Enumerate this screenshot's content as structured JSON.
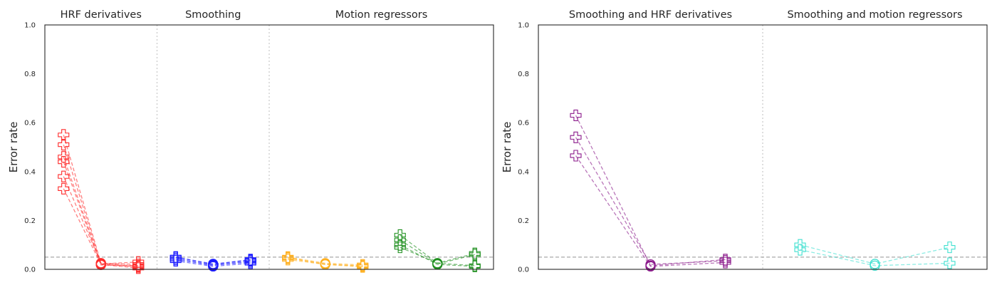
{
  "chart_data": [
    {
      "type": "line",
      "ylabel": "Error rate",
      "ylim": [
        0,
        1
      ],
      "yticks": [
        "0.0",
        "0.2",
        "0.4",
        "0.6",
        "0.8",
        "1.0"
      ],
      "threshold": 0.05,
      "grid": false,
      "x_slots": 12,
      "sections": [
        {
          "title": "HRF derivatives",
          "slots": [
            0,
            3
          ]
        },
        {
          "title": "Smoothing",
          "slots": [
            3,
            6
          ]
        },
        {
          "title": "Motion regressors",
          "slots": [
            6,
            12
          ]
        }
      ],
      "groups": [
        {
          "name": "HRF derivatives",
          "color": "#ff2b2b",
          "x": [
            0.5,
            1.5,
            2.5
          ],
          "markers": [
            "plus",
            "circle",
            "plus"
          ],
          "series": [
            [
              0.55,
              0.025,
              0.02
            ],
            [
              0.51,
              0.022,
              0.03
            ],
            [
              0.46,
              0.02,
              0.015
            ],
            [
              0.44,
              0.018,
              0.012
            ],
            [
              0.38,
              0.025,
              0.01
            ],
            [
              0.33,
              0.02,
              0.005
            ]
          ]
        },
        {
          "name": "Smoothing",
          "color": "#1a1aff",
          "x": [
            3.5,
            4.5,
            5.5
          ],
          "markers": [
            "plus",
            "circle",
            "plus"
          ],
          "series": [
            [
              0.05,
              0.02,
              0.04
            ],
            [
              0.045,
              0.015,
              0.035
            ],
            [
              0.04,
              0.018,
              0.03
            ],
            [
              0.035,
              0.012,
              0.025
            ],
            [
              0.05,
              0.022,
              0.038
            ]
          ]
        },
        {
          "name": "Motion regressors",
          "color": "#ffb020",
          "x": [
            6.5,
            7.5,
            8.5
          ],
          "markers": [
            "plus",
            "circle",
            "plus"
          ],
          "series": [
            [
              0.05,
              0.025,
              0.018
            ],
            [
              0.045,
              0.022,
              0.012
            ],
            [
              0.04,
              0.02,
              0.015
            ],
            [
              0.048,
              0.02,
              0.01
            ]
          ]
        },
        {
          "name": "Motion regressors",
          "color": "#1f8f1f",
          "x": [
            9.5,
            10.5,
            11.5
          ],
          "markers": [
            "plus",
            "circle",
            "plus"
          ],
          "series": [
            [
              0.14,
              0.025,
              0.065
            ],
            [
              0.12,
              0.022,
              0.06
            ],
            [
              0.1,
              0.02,
              0.012
            ],
            [
              0.09,
              0.025,
              0.015
            ]
          ]
        }
      ]
    },
    {
      "type": "line",
      "ylabel": "Error rate",
      "ylim": [
        0,
        1
      ],
      "yticks": [
        "0.0",
        "0.2",
        "0.4",
        "0.6",
        "0.8",
        "1.0"
      ],
      "threshold": 0.05,
      "grid": false,
      "x_slots": 6,
      "sections": [
        {
          "title": "Smoothing and HRF derivatives",
          "slots": [
            0,
            3
          ]
        },
        {
          "title": "Smoothing and motion regressors",
          "slots": [
            3,
            6
          ]
        }
      ],
      "groups": [
        {
          "name": "Smoothing and HRF derivatives",
          "color": "#8b1a8b",
          "x": [
            0.5,
            1.5,
            2.5
          ],
          "markers": [
            "plus",
            "circle",
            "plus"
          ],
          "series": [
            [
              0.63,
              0.015,
              0.04
            ],
            [
              0.54,
              0.02,
              0.035
            ],
            [
              0.465,
              0.012,
              0.028
            ]
          ]
        },
        {
          "name": "Smoothing and motion regressors",
          "color": "#40e0d0",
          "x": [
            3.5,
            4.5,
            5.5
          ],
          "markers": [
            "plus",
            "circle",
            "plus"
          ],
          "series": [
            [
              0.1,
              0.022,
              0.09
            ],
            [
              0.08,
              0.015,
              0.025
            ]
          ]
        }
      ]
    }
  ]
}
